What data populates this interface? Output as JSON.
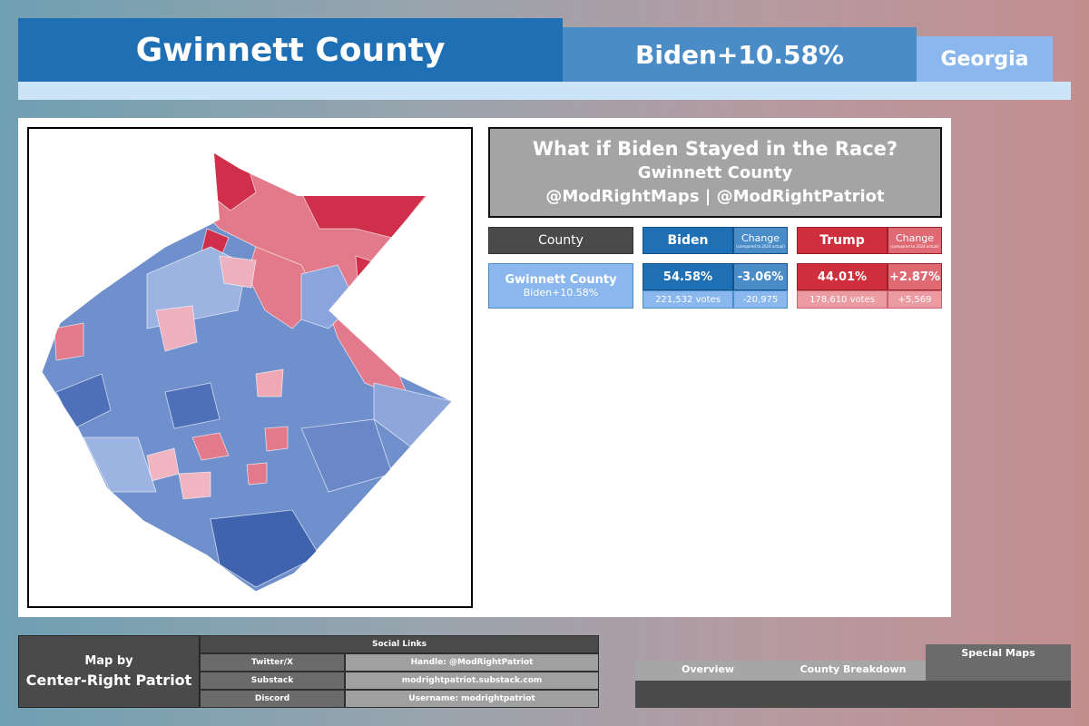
{
  "header": {
    "county": "Gwinnett County",
    "margin": "Biden+10.58%",
    "state": "Georgia"
  },
  "title_box": {
    "line1": "What if Biden Stayed in the Race?",
    "line2": "Gwinnett County",
    "line3": "@ModRightMaps | @ModRightPatriot"
  },
  "table": {
    "county_header": "County",
    "biden_header": "Biden",
    "trump_header": "Trump",
    "change_header": "Change",
    "change_sub": "(compared to 2024 actual)",
    "row": {
      "county": "Gwinnett County",
      "margin": "Biden+10.58%",
      "biden_pct": "54.58%",
      "biden_change": "-3.06%",
      "biden_votes": "221,532 votes",
      "biden_votes_change": "-20,975",
      "trump_pct": "44.01%",
      "trump_change": "+2.87%",
      "trump_votes": "178,610 votes",
      "trump_votes_change": "+5,569"
    }
  },
  "colors": {
    "dem_strong": "#1f6fb5",
    "dem_mid": "#4a8cc8",
    "dem_light": "#8ab8ee",
    "rep_strong": "#cf2f3d",
    "rep_mid": "#e06a74",
    "rep_light": "#ec9ba2"
  },
  "footer": {
    "credit_line1": "Map by",
    "credit_line2": "Center-Right Patriot",
    "social_header": "Social Links",
    "social": [
      {
        "name": "Twitter/X",
        "value": "Handle: @ModRightPatriot"
      },
      {
        "name": "Substack",
        "value": "modrightpatriot.substack.com"
      },
      {
        "name": "Discord",
        "value": "Username: modrightpatriot"
      }
    ],
    "tabs": {
      "overview": "Overview",
      "county_breakdown": "County Breakdown",
      "special_maps": "Special Maps"
    }
  }
}
